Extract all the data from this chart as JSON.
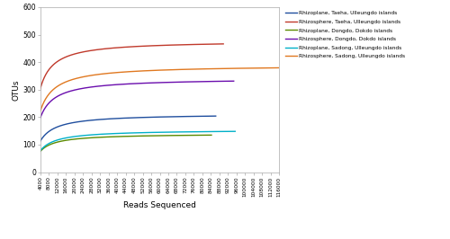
{
  "title": "",
  "xlabel": "Reads Sequenced",
  "ylabel": "OTUs",
  "xlim": [
    4000,
    116000
  ],
  "ylim": [
    0,
    600
  ],
  "yticks": [
    0,
    100,
    200,
    300,
    400,
    500,
    600
  ],
  "series": [
    {
      "label": "Rhizoplane, Taeha, Ulleungdo islands",
      "color": "#1f4e9e",
      "max_reads": 86299,
      "max_otus": 212,
      "K_factor": 0.04
    },
    {
      "label": "Rhizosphere, Taeha, Ulleungdo islands",
      "color": "#c0392b",
      "max_reads": 89864,
      "max_otus": 478,
      "K_factor": 0.025
    },
    {
      "label": "Rhizoplane, Dongdo, Dokdo islands",
      "color": "#5a8a00",
      "max_reads": 84267,
      "max_otus": 140,
      "K_factor": 0.04
    },
    {
      "label": "Rhizosphere, Dongdo, Dokdo islands",
      "color": "#6a0dad",
      "max_reads": 94745,
      "max_otus": 341,
      "K_factor": 0.03
    },
    {
      "label": "Rhizoplane, Sadong, Ulleungdo islands",
      "color": "#00b0c8",
      "max_reads": 95395,
      "max_otus": 154,
      "K_factor": 0.04
    },
    {
      "label": "Rhizosphere, Sadong, Ulleungdo islands",
      "color": "#e07820",
      "max_reads": 117939,
      "max_otus": 389,
      "K_factor": 0.025
    }
  ],
  "xticks": [
    4000,
    8000,
    12000,
    16000,
    20000,
    24000,
    28000,
    32000,
    36000,
    40000,
    44000,
    48000,
    52000,
    56000,
    60000,
    64000,
    68000,
    72000,
    76000,
    80000,
    84000,
    88000,
    92000,
    96000,
    100000,
    104000,
    108000,
    112000,
    116000
  ],
  "background_color": "#ffffff"
}
